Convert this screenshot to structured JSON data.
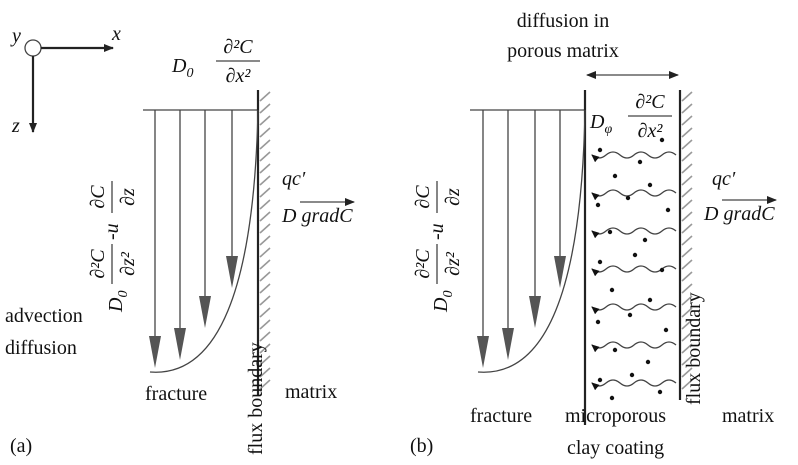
{
  "panel_a": {
    "label": "(a)",
    "axes": {
      "y": "y",
      "x": "x",
      "z": "z"
    },
    "top_equation": {
      "coefficient": "D",
      "subscript": "0",
      "numerator": "∂²C",
      "denominator": "∂x²"
    },
    "side_equation": {
      "coefficient": "D",
      "subscript": "0",
      "term1_numerator": "∂²C",
      "term1_denominator": "∂z²",
      "operator": "-u",
      "term2_numerator": "∂C",
      "term2_denominator": "∂z"
    },
    "flux_label": "qc′",
    "flux_vector": {
      "coefficient": "D",
      "vector": "gradC"
    },
    "process_label": [
      "advection",
      "diffusion"
    ],
    "fracture": "fracture",
    "boundary": "flux boundary",
    "matrix": "matrix"
  },
  "panel_b": {
    "label": "(b)",
    "header": [
      "diffusion in",
      "porous matrix"
    ],
    "top_equation": {
      "coefficient": "D",
      "subscript": "φ",
      "numerator": "∂²C",
      "denominator": "∂x²"
    },
    "side_equation": {
      "coefficient": "D",
      "subscript": "0",
      "term1_numerator": "∂²C",
      "term1_denominator": "∂z²",
      "operator": "-u",
      "term2_numerator": "∂C",
      "term2_denominator": "∂z"
    },
    "flux_label": "qc′",
    "flux_vector": {
      "coefficient": "D",
      "vector": "gradC"
    },
    "fracture": "fracture",
    "coating": [
      "microporous",
      "clay coating"
    ],
    "boundary": "flux boundary",
    "matrix": "matrix"
  }
}
